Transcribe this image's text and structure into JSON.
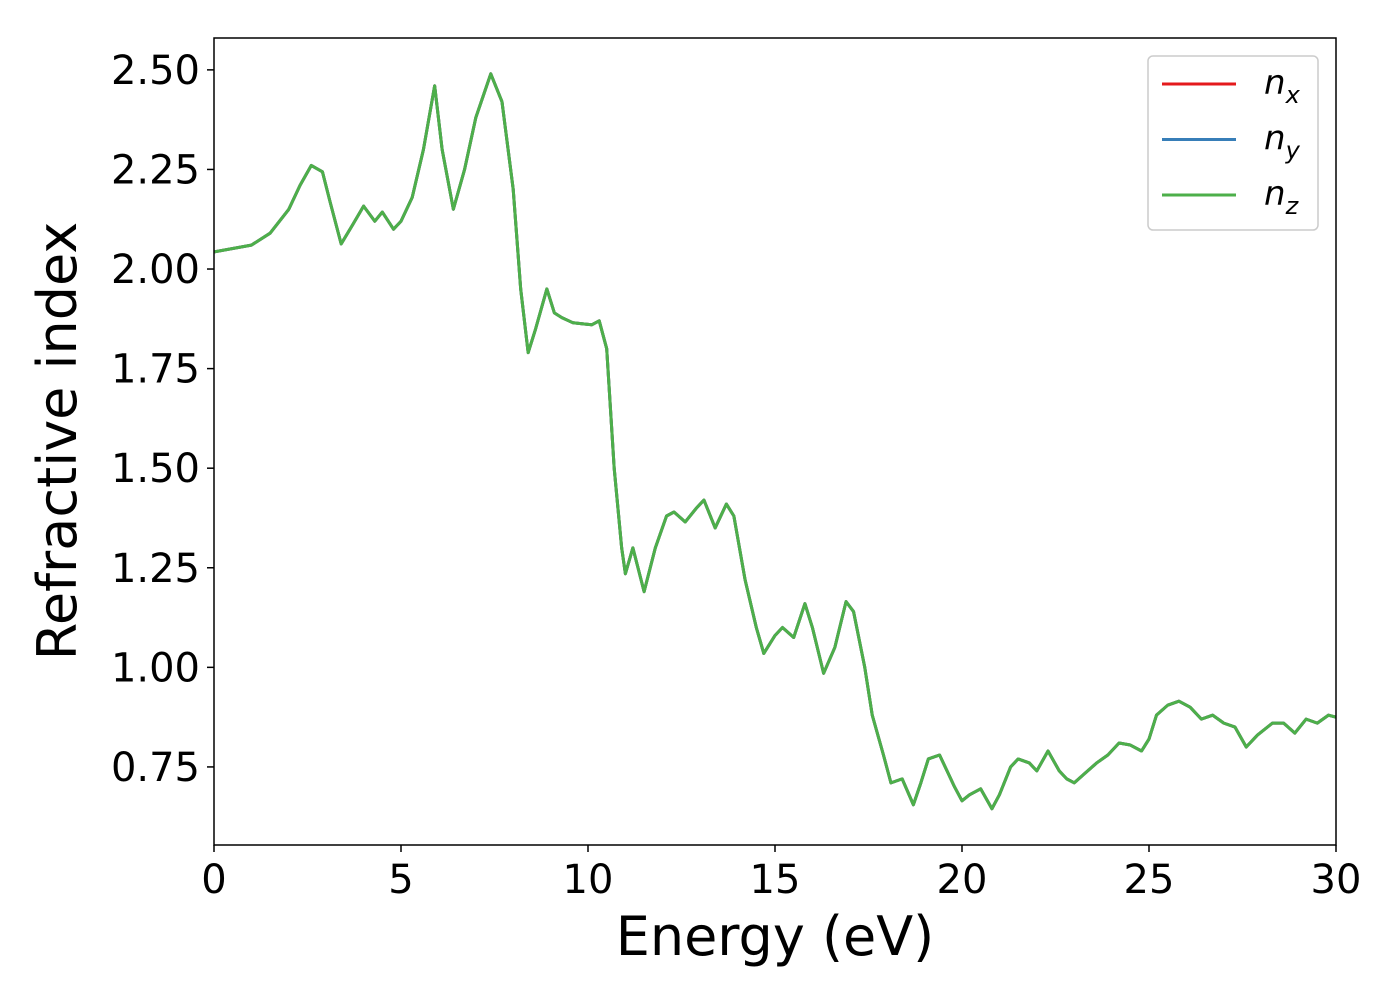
{
  "chart_data": {
    "type": "line",
    "xlabel": "Energy (eV)",
    "ylabel": "Refractive index",
    "xlim": [
      0,
      30
    ],
    "xticks": [
      0,
      5,
      10,
      15,
      20,
      25,
      30
    ],
    "ylim": [
      0.554,
      2.58
    ],
    "yticks": [
      0.75,
      {
        "value": 1.0,
        "label": "1.00"
      },
      1.25,
      {
        "value": 1.5,
        "label": "1.50"
      },
      1.75,
      {
        "value": 2.0,
        "label": "2.00"
      },
      2.25,
      {
        "value": 2.5,
        "label": "2.50"
      }
    ],
    "grid": false,
    "legend": "upper right",
    "x": [
      0,
      1,
      1.5,
      2,
      2.3,
      2.6,
      2.9,
      3.1,
      3.4,
      3.7,
      4.0,
      4.3,
      4.5,
      4.8,
      5.0,
      5.3,
      5.6,
      5.9,
      6.1,
      6.4,
      6.7,
      7.0,
      7.4,
      7.7,
      8.0,
      8.2,
      8.4,
      8.6,
      8.9,
      9.1,
      9.3,
      9.6,
      9.9,
      10.1,
      10.3,
      10.5,
      10.7,
      10.9,
      11.0,
      11.2,
      11.5,
      11.8,
      12.1,
      12.3,
      12.6,
      12.9,
      13.1,
      13.4,
      13.7,
      13.9,
      14.2,
      14.5,
      14.7,
      15.0,
      15.2,
      15.5,
      15.8,
      16.0,
      16.3,
      16.6,
      16.9,
      17.1,
      17.4,
      17.6,
      17.9,
      18.1,
      18.4,
      18.7,
      18.9,
      19.1,
      19.4,
      19.6,
      19.8,
      20.0,
      20.2,
      20.5,
      20.8,
      21.0,
      21.3,
      21.5,
      21.8,
      22.0,
      22.3,
      22.6,
      22.8,
      23.0,
      23.3,
      23.6,
      23.9,
      24.2,
      24.5,
      24.8,
      25.0,
      25.2,
      25.5,
      25.8,
      26.1,
      26.4,
      26.7,
      27.0,
      27.3,
      27.6,
      27.9,
      28.3,
      28.6,
      28.9,
      29.2,
      29.5,
      29.8,
      30.0
    ],
    "series": [
      {
        "name": "nx",
        "color": "#e41a1c",
        "values": [
          2.043,
          2.06,
          2.09,
          2.15,
          2.21,
          2.26,
          2.244,
          2.17,
          2.063,
          2.11,
          2.158,
          2.12,
          2.143,
          2.1,
          2.12,
          2.18,
          2.3,
          2.46,
          2.3,
          2.15,
          2.25,
          2.38,
          2.49,
          2.42,
          2.2,
          1.95,
          1.79,
          1.85,
          1.95,
          1.89,
          1.878,
          1.865,
          1.862,
          1.86,
          1.87,
          1.8,
          1.5,
          1.3,
          1.235,
          1.3,
          1.19,
          1.3,
          1.38,
          1.39,
          1.365,
          1.4,
          1.42,
          1.35,
          1.41,
          1.38,
          1.22,
          1.1,
          1.035,
          1.08,
          1.1,
          1.075,
          1.16,
          1.1,
          0.985,
          1.05,
          1.165,
          1.14,
          1.0,
          0.88,
          0.78,
          0.71,
          0.72,
          0.655,
          0.71,
          0.77,
          0.78,
          0.74,
          0.7,
          0.665,
          0.68,
          0.695,
          0.645,
          0.68,
          0.75,
          0.77,
          0.76,
          0.74,
          0.79,
          0.74,
          0.72,
          0.71,
          0.735,
          0.76,
          0.78,
          0.81,
          0.805,
          0.79,
          0.82,
          0.88,
          0.905,
          0.915,
          0.9,
          0.87,
          0.88,
          0.86,
          0.85,
          0.8,
          0.83,
          0.86,
          0.86,
          0.835,
          0.87,
          0.86,
          0.88,
          0.875
        ]
      },
      {
        "name": "ny",
        "color": "#377eb8",
        "values": [
          2.043,
          2.06,
          2.09,
          2.15,
          2.21,
          2.26,
          2.244,
          2.17,
          2.063,
          2.11,
          2.158,
          2.12,
          2.143,
          2.1,
          2.12,
          2.18,
          2.3,
          2.46,
          2.3,
          2.15,
          2.25,
          2.38,
          2.49,
          2.42,
          2.2,
          1.95,
          1.79,
          1.85,
          1.95,
          1.89,
          1.878,
          1.865,
          1.862,
          1.86,
          1.87,
          1.8,
          1.5,
          1.3,
          1.235,
          1.3,
          1.19,
          1.3,
          1.38,
          1.39,
          1.365,
          1.4,
          1.42,
          1.35,
          1.41,
          1.38,
          1.22,
          1.1,
          1.035,
          1.08,
          1.1,
          1.075,
          1.16,
          1.1,
          0.985,
          1.05,
          1.165,
          1.14,
          1.0,
          0.88,
          0.78,
          0.71,
          0.72,
          0.655,
          0.71,
          0.77,
          0.78,
          0.74,
          0.7,
          0.665,
          0.68,
          0.695,
          0.645,
          0.68,
          0.75,
          0.77,
          0.76,
          0.74,
          0.79,
          0.74,
          0.72,
          0.71,
          0.735,
          0.76,
          0.78,
          0.81,
          0.805,
          0.79,
          0.82,
          0.88,
          0.905,
          0.915,
          0.9,
          0.87,
          0.88,
          0.86,
          0.85,
          0.8,
          0.83,
          0.86,
          0.86,
          0.835,
          0.87,
          0.86,
          0.88,
          0.875
        ]
      },
      {
        "name": "nz",
        "color": "#4daf4a",
        "values": [
          2.043,
          2.06,
          2.09,
          2.15,
          2.21,
          2.26,
          2.244,
          2.17,
          2.063,
          2.11,
          2.158,
          2.12,
          2.143,
          2.1,
          2.12,
          2.18,
          2.3,
          2.46,
          2.3,
          2.15,
          2.25,
          2.38,
          2.49,
          2.42,
          2.2,
          1.95,
          1.79,
          1.85,
          1.95,
          1.89,
          1.878,
          1.865,
          1.862,
          1.86,
          1.87,
          1.8,
          1.5,
          1.3,
          1.235,
          1.3,
          1.19,
          1.3,
          1.38,
          1.39,
          1.365,
          1.4,
          1.42,
          1.35,
          1.41,
          1.38,
          1.22,
          1.1,
          1.035,
          1.08,
          1.1,
          1.075,
          1.16,
          1.1,
          0.985,
          1.05,
          1.165,
          1.14,
          1.0,
          0.88,
          0.78,
          0.71,
          0.72,
          0.655,
          0.71,
          0.77,
          0.78,
          0.74,
          0.7,
          0.665,
          0.68,
          0.695,
          0.645,
          0.68,
          0.75,
          0.77,
          0.76,
          0.74,
          0.79,
          0.74,
          0.72,
          0.71,
          0.735,
          0.76,
          0.78,
          0.81,
          0.805,
          0.79,
          0.82,
          0.88,
          0.905,
          0.915,
          0.9,
          0.87,
          0.88,
          0.86,
          0.85,
          0.8,
          0.83,
          0.86,
          0.86,
          0.835,
          0.87,
          0.86,
          0.88,
          0.875
        ]
      }
    ]
  }
}
